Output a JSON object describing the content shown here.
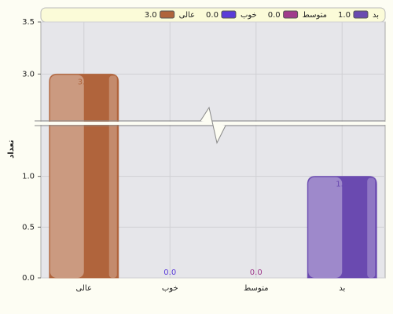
{
  "chart_data": {
    "type": "bar",
    "y_label": "تعداد",
    "categories": [
      "عالی",
      "خوب",
      "متوسط",
      "بد"
    ],
    "values": [
      3,
      0,
      0,
      1
    ],
    "value_labels": [
      "3.0",
      "0.0",
      "0.0",
      "1.0"
    ],
    "colors": [
      "#b0643c",
      "#5a3cd8",
      "#a03c8c",
      "#6a4ab0"
    ],
    "ylim": [
      0,
      1.5
    ],
    "yticks": [
      {
        "value": 0,
        "label": "0.0"
      },
      0.5,
      {
        "value": 1,
        "label": "1.0"
      }
    ],
    "ylim_upper": [
      2.55,
      3.5
    ],
    "yticks_upper": [
      {
        "value": 3,
        "label": "3.0"
      },
      3.5
    ],
    "grid": true
  }
}
